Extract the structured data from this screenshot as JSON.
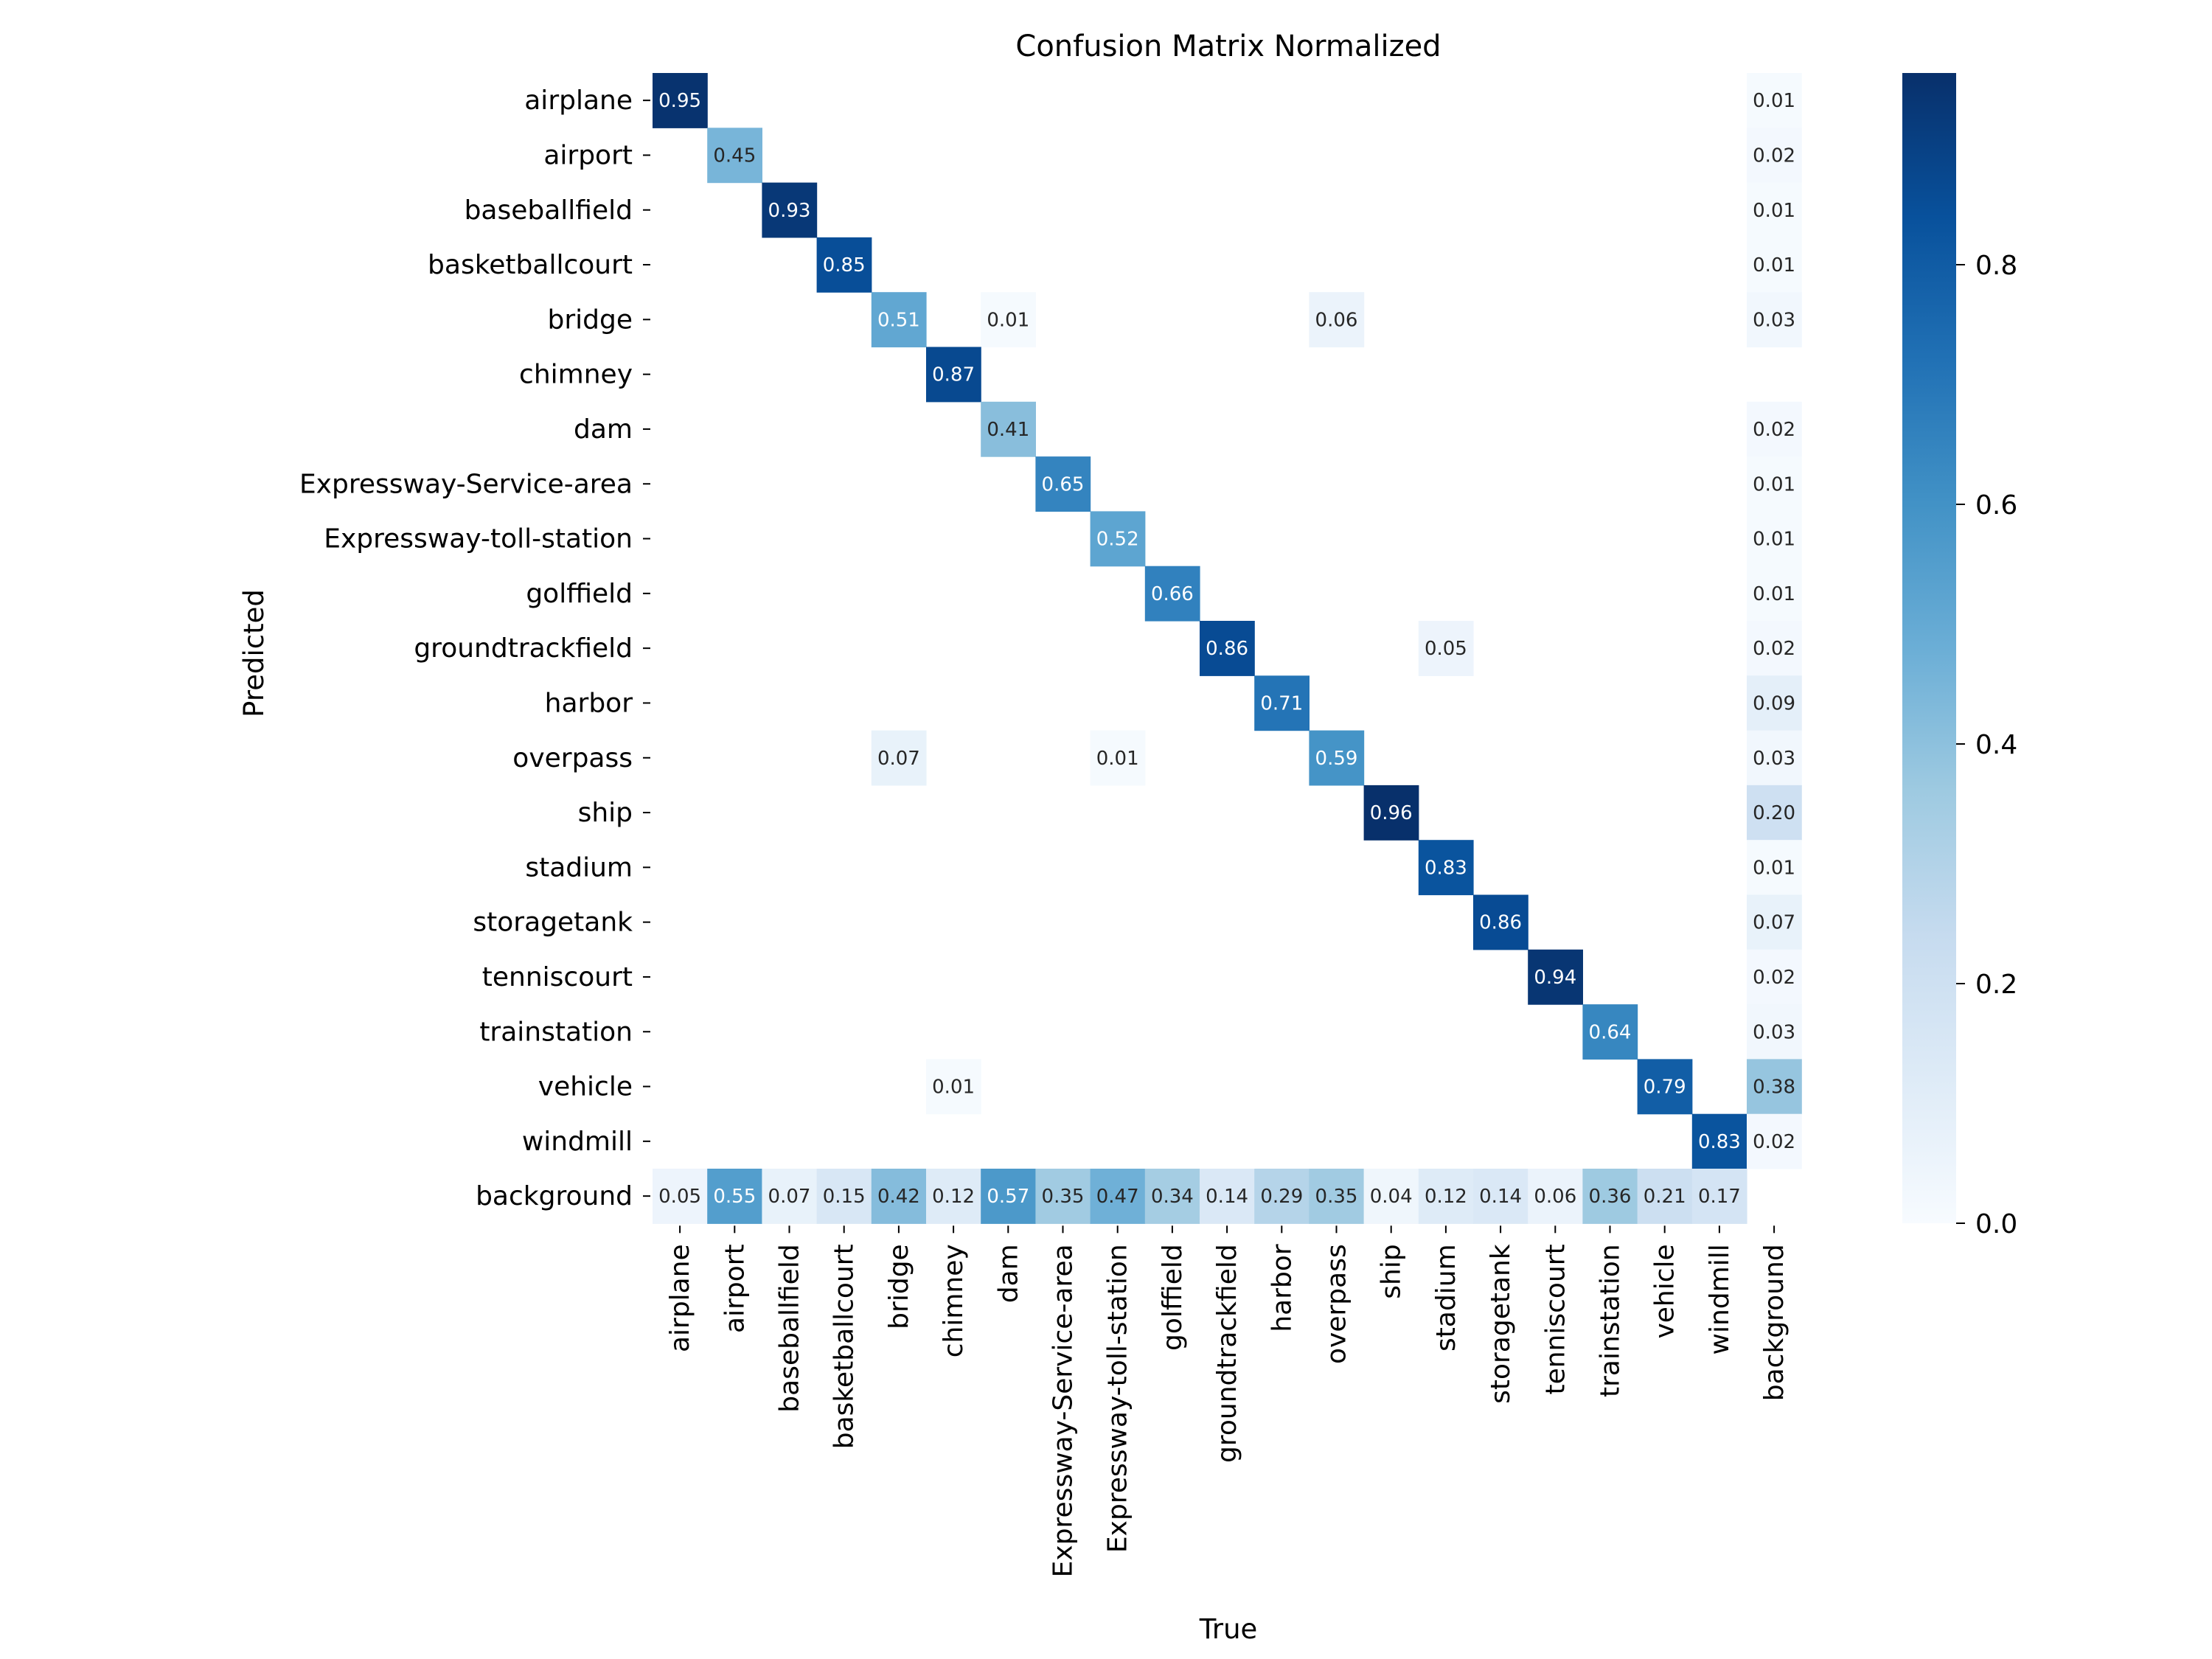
{
  "chart_data": {
    "type": "heatmap",
    "title": "Confusion Matrix Normalized",
    "xlabel": "True",
    "ylabel": "Predicted",
    "categories": [
      "airplane",
      "airport",
      "baseballfield",
      "basketballcourt",
      "bridge",
      "chimney",
      "dam",
      "Expressway-Service-area",
      "Expressway-toll-station",
      "golffield",
      "groundtrackfield",
      "harbor",
      "overpass",
      "ship",
      "stadium",
      "storagetank",
      "tenniscourt",
      "trainstation",
      "vehicle",
      "windmill",
      "background"
    ],
    "values": [
      [
        0.95,
        null,
        null,
        null,
        null,
        null,
        null,
        null,
        null,
        null,
        null,
        null,
        null,
        null,
        null,
        null,
        null,
        null,
        null,
        null,
        0.01
      ],
      [
        null,
        0.45,
        null,
        null,
        null,
        null,
        null,
        null,
        null,
        null,
        null,
        null,
        null,
        null,
        null,
        null,
        null,
        null,
        null,
        null,
        0.02
      ],
      [
        null,
        null,
        0.93,
        null,
        null,
        null,
        null,
        null,
        null,
        null,
        null,
        null,
        null,
        null,
        null,
        null,
        null,
        null,
        null,
        null,
        0.01
      ],
      [
        null,
        null,
        null,
        0.85,
        null,
        null,
        null,
        null,
        null,
        null,
        null,
        null,
        null,
        null,
        null,
        null,
        null,
        null,
        null,
        null,
        0.01
      ],
      [
        null,
        null,
        null,
        null,
        0.51,
        null,
        0.01,
        null,
        null,
        null,
        null,
        null,
        0.06,
        null,
        null,
        null,
        null,
        null,
        null,
        null,
        0.03
      ],
      [
        null,
        null,
        null,
        null,
        null,
        0.87,
        null,
        null,
        null,
        null,
        null,
        null,
        null,
        null,
        null,
        null,
        null,
        null,
        null,
        null,
        null
      ],
      [
        null,
        null,
        null,
        null,
        null,
        null,
        0.41,
        null,
        null,
        null,
        null,
        null,
        null,
        null,
        null,
        null,
        null,
        null,
        null,
        null,
        0.02
      ],
      [
        null,
        null,
        null,
        null,
        null,
        null,
        null,
        0.65,
        null,
        null,
        null,
        null,
        null,
        null,
        null,
        null,
        null,
        null,
        null,
        null,
        0.01
      ],
      [
        null,
        null,
        null,
        null,
        null,
        null,
        null,
        null,
        0.52,
        null,
        null,
        null,
        null,
        null,
        null,
        null,
        null,
        null,
        null,
        null,
        0.01
      ],
      [
        null,
        null,
        null,
        null,
        null,
        null,
        null,
        null,
        null,
        0.66,
        null,
        null,
        null,
        null,
        null,
        null,
        null,
        null,
        null,
        null,
        0.01
      ],
      [
        null,
        null,
        null,
        null,
        null,
        null,
        null,
        null,
        null,
        null,
        0.86,
        null,
        null,
        null,
        0.05,
        null,
        null,
        null,
        null,
        null,
        0.02
      ],
      [
        null,
        null,
        null,
        null,
        null,
        null,
        null,
        null,
        null,
        null,
        null,
        0.71,
        null,
        null,
        null,
        null,
        null,
        null,
        null,
        null,
        0.09
      ],
      [
        null,
        null,
        null,
        null,
        0.07,
        null,
        null,
        null,
        0.01,
        null,
        null,
        null,
        0.59,
        null,
        null,
        null,
        null,
        null,
        null,
        null,
        0.03
      ],
      [
        null,
        null,
        null,
        null,
        null,
        null,
        null,
        null,
        null,
        null,
        null,
        null,
        null,
        0.96,
        null,
        null,
        null,
        null,
        null,
        null,
        0.2
      ],
      [
        null,
        null,
        null,
        null,
        null,
        null,
        null,
        null,
        null,
        null,
        null,
        null,
        null,
        null,
        0.83,
        null,
        null,
        null,
        null,
        null,
        0.01
      ],
      [
        null,
        null,
        null,
        null,
        null,
        null,
        null,
        null,
        null,
        null,
        null,
        null,
        null,
        null,
        null,
        0.86,
        null,
        null,
        null,
        null,
        0.07
      ],
      [
        null,
        null,
        null,
        null,
        null,
        null,
        null,
        null,
        null,
        null,
        null,
        null,
        null,
        null,
        null,
        null,
        0.94,
        null,
        null,
        null,
        0.02
      ],
      [
        null,
        null,
        null,
        null,
        null,
        null,
        null,
        null,
        null,
        null,
        null,
        null,
        null,
        null,
        null,
        null,
        null,
        0.64,
        null,
        null,
        0.03
      ],
      [
        null,
        null,
        null,
        null,
        null,
        0.01,
        null,
        null,
        null,
        null,
        null,
        null,
        null,
        null,
        null,
        null,
        null,
        null,
        0.79,
        null,
        0.38
      ],
      [
        null,
        null,
        null,
        null,
        null,
        null,
        null,
        null,
        null,
        null,
        null,
        null,
        null,
        null,
        null,
        null,
        null,
        null,
        null,
        0.83,
        0.02
      ],
      [
        0.05,
        0.55,
        0.07,
        0.15,
        0.42,
        0.12,
        0.57,
        0.35,
        0.47,
        0.34,
        0.14,
        0.29,
        0.35,
        0.04,
        0.12,
        0.14,
        0.06,
        0.36,
        0.21,
        0.17,
        null
      ]
    ],
    "colorbar": {
      "colormap": "Blues",
      "range": [
        0,
        0.96
      ],
      "ticks": [
        0.0,
        0.2,
        0.4,
        0.6,
        0.8
      ],
      "tick_labels": [
        "0.0",
        "0.2",
        "0.4",
        "0.6",
        "0.8"
      ]
    },
    "grid": false,
    "legend": "none"
  }
}
